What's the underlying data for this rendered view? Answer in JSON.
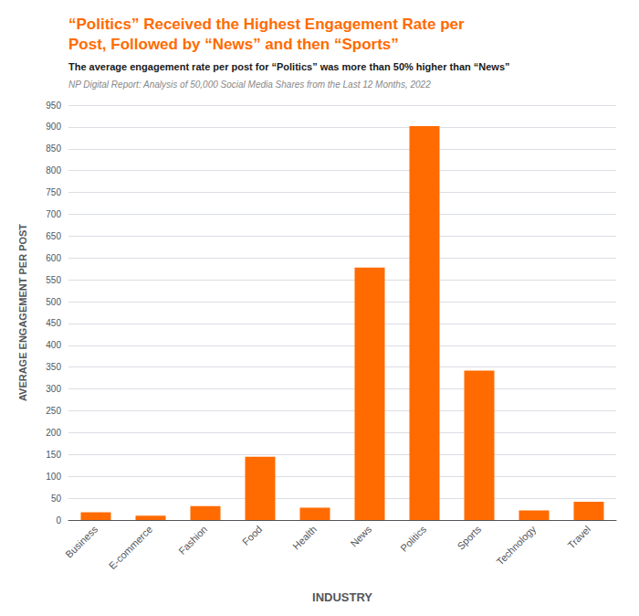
{
  "chart_data": {
    "type": "bar",
    "title": "“Politics” Received the Highest Engagement Rate per\nPost, Followed by “News” and then “Sports”",
    "subtitle": "The average engagement rate per post for “Politics” was more than 50% higher than “News”",
    "source": "NP Digital Report: Analysis of 50,000 Social Media Shares from the Last 12 Months, 2022",
    "xlabel": "INDUSTRY",
    "ylabel": "AVERAGE ENGAGEMENT PER POST",
    "categories": [
      "Business",
      "E-commerce",
      "Fashion",
      "Food",
      "Health",
      "News",
      "Politics",
      "Sports",
      "Technology",
      "Travel"
    ],
    "values": [
      18,
      10,
      32,
      145,
      28,
      578,
      902,
      342,
      22,
      42
    ],
    "color": "#FF6B00",
    "ylim": [
      0,
      950
    ],
    "yticks": [
      0,
      50,
      100,
      150,
      200,
      250,
      300,
      350,
      400,
      450,
      500,
      550,
      600,
      650,
      700,
      750,
      800,
      850,
      900,
      950
    ],
    "grid": true
  }
}
